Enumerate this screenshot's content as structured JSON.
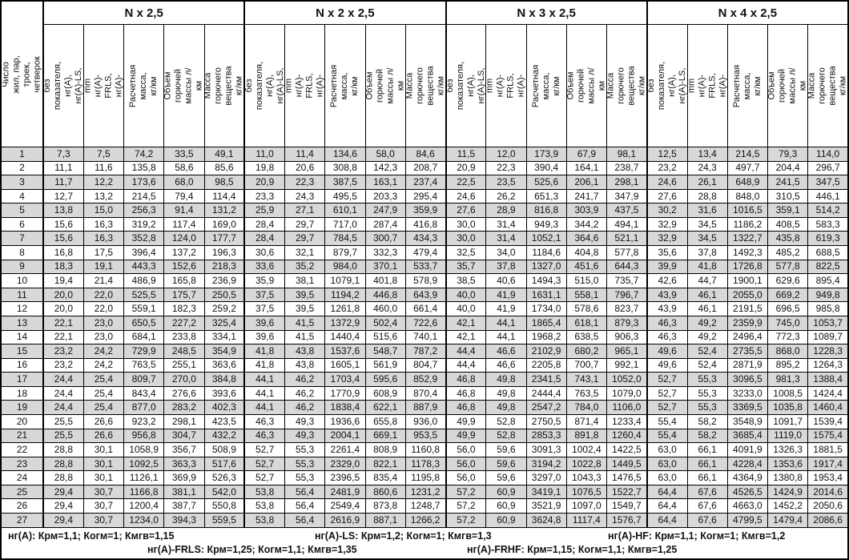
{
  "colors": {
    "stripe": "#d8d8d8",
    "border": "#000000",
    "background": "#ffffff",
    "text": "#111111"
  },
  "header": {
    "row_label": "Число жил, пар, троек,\nчетверок",
    "groups": [
      "N x 2,5",
      "N x 2 x 2,5",
      "N x 3 x 2,5",
      "N x 4 x 2,5"
    ],
    "columns": [
      "Dmax, mm\nбез показателя, нг(А),\nнг(А)-LS, нг(А)-HF",
      "Dmax, mm\nнг(А)-FRLS,\nнг(А)-FRHF",
      "Расчетная масса,\nкг/км",
      "Объем горючей\nмассы л/км",
      "Масса горючего\nвещества кг/км"
    ]
  },
  "rows": [
    [
      "1",
      "7,3",
      "7,5",
      "74,2",
      "33,5",
      "49,1",
      "11,0",
      "11,4",
      "134,6",
      "58,0",
      "84,6",
      "11,5",
      "12,0",
      "173,9",
      "67,9",
      "98,1",
      "12,5",
      "13,4",
      "214,5",
      "79,3",
      "114,0"
    ],
    [
      "2",
      "11,1",
      "11,6",
      "135,8",
      "58,6",
      "85,6",
      "19,8",
      "20,6",
      "308,8",
      "142,3",
      "208,7",
      "20,9",
      "22,3",
      "390,4",
      "164,1",
      "238,7",
      "23,2",
      "24,3",
      "497,7",
      "204,4",
      "296,7"
    ],
    [
      "3",
      "11,7",
      "12,2",
      "173,6",
      "68,0",
      "98,5",
      "20,9",
      "22,3",
      "387,5",
      "163,1",
      "237,4",
      "22,5",
      "23,5",
      "525,6",
      "206,1",
      "298,1",
      "24,6",
      "26,1",
      "648,9",
      "241,5",
      "347,5"
    ],
    [
      "4",
      "12,7",
      "13,2",
      "214,5",
      "79,4",
      "114,4",
      "23,3",
      "24,3",
      "495,5",
      "203,3",
      "295,4",
      "24,6",
      "26,2",
      "651,3",
      "241,7",
      "347,9",
      "27,6",
      "28,8",
      "848,0",
      "310,5",
      "446,1"
    ],
    [
      "5",
      "13,8",
      "15,0",
      "256,3",
      "91,4",
      "131,2",
      "25,9",
      "27,1",
      "610,1",
      "247,9",
      "359,9",
      "27,6",
      "28,9",
      "816,8",
      "303,9",
      "437,5",
      "30,2",
      "31,6",
      "1016,5",
      "359,1",
      "514,2"
    ],
    [
      "6",
      "15,6",
      "16,3",
      "319,2",
      "117,4",
      "169,0",
      "28,4",
      "29,7",
      "717,0",
      "287,4",
      "416,8",
      "30,0",
      "31,4",
      "949,3",
      "344,2",
      "494,1",
      "32,9",
      "34,5",
      "1186,2",
      "408,5",
      "583,3"
    ],
    [
      "7",
      "15,6",
      "16,3",
      "352,8",
      "124,0",
      "177,7",
      "28,4",
      "29,7",
      "784,5",
      "300,7",
      "434,3",
      "30,0",
      "31,4",
      "1052,1",
      "364,6",
      "521,1",
      "32,9",
      "34,5",
      "1322,7",
      "435,8",
      "619,3"
    ],
    [
      "8",
      "16,8",
      "17,5",
      "396,4",
      "137,2",
      "196,3",
      "30,6",
      "32,1",
      "879,7",
      "332,3",
      "479,4",
      "32,5",
      "34,0",
      "1184,6",
      "404,8",
      "577,8",
      "35,6",
      "37,8",
      "1492,3",
      "485,2",
      "688,5"
    ],
    [
      "9",
      "18,3",
      "19,1",
      "443,3",
      "152,6",
      "218,3",
      "33,6",
      "35,2",
      "984,0",
      "370,1",
      "533,7",
      "35,7",
      "37,8",
      "1327,0",
      "451,6",
      "644,3",
      "39,9",
      "41,8",
      "1726,8",
      "577,8",
      "822,5"
    ],
    [
      "10",
      "19,4",
      "21,4",
      "486,9",
      "165,8",
      "236,9",
      "35,9",
      "38,1",
      "1079,1",
      "401,8",
      "578,9",
      "38,5",
      "40,6",
      "1494,3",
      "515,0",
      "735,7",
      "42,6",
      "44,7",
      "1900,1",
      "629,6",
      "895,4"
    ],
    [
      "11",
      "20,0",
      "22,0",
      "525,5",
      "175,7",
      "250,5",
      "37,5",
      "39,5",
      "1194,2",
      "446,8",
      "643,9",
      "40,0",
      "41,9",
      "1631,1",
      "558,1",
      "796,7",
      "43,9",
      "46,1",
      "2055,0",
      "669,2",
      "949,8"
    ],
    [
      "12",
      "20,0",
      "22,0",
      "559,1",
      "182,3",
      "259,2",
      "37,5",
      "39,5",
      "1261,8",
      "460,0",
      "661,4",
      "40,0",
      "41,9",
      "1734,0",
      "578,6",
      "823,7",
      "43,9",
      "46,1",
      "2191,5",
      "696,5",
      "985,8"
    ],
    [
      "13",
      "22,1",
      "23,0",
      "650,5",
      "227,2",
      "325,4",
      "39,6",
      "41,5",
      "1372,9",
      "502,4",
      "722,6",
      "42,1",
      "44,1",
      "1865,4",
      "618,1",
      "879,3",
      "46,3",
      "49,2",
      "2359,9",
      "745,0",
      "1053,7"
    ],
    [
      "14",
      "22,1",
      "23,0",
      "684,1",
      "233,8",
      "334,1",
      "39,6",
      "41,5",
      "1440,4",
      "515,6",
      "740,1",
      "42,1",
      "44,1",
      "1968,2",
      "638,5",
      "906,3",
      "46,3",
      "49,2",
      "2496,4",
      "772,3",
      "1089,7"
    ],
    [
      "15",
      "23,2",
      "24,2",
      "729,9",
      "248,5",
      "354,9",
      "41,8",
      "43,8",
      "1537,6",
      "548,7",
      "787,2",
      "44,4",
      "46,6",
      "2102,9",
      "680,2",
      "965,1",
      "49,6",
      "52,4",
      "2735,5",
      "868,0",
      "1228,3"
    ],
    [
      "16",
      "23,2",
      "24,2",
      "763,5",
      "255,1",
      "363,6",
      "41,8",
      "43,8",
      "1605,1",
      "561,9",
      "804,7",
      "44,4",
      "46,6",
      "2205,8",
      "700,7",
      "992,1",
      "49,6",
      "52,4",
      "2871,9",
      "895,2",
      "1264,3"
    ],
    [
      "17",
      "24,4",
      "25,4",
      "809,7",
      "270,0",
      "384,8",
      "44,1",
      "46,2",
      "1703,4",
      "595,6",
      "852,9",
      "46,8",
      "49,8",
      "2341,5",
      "743,1",
      "1052,0",
      "52,7",
      "55,3",
      "3096,5",
      "981,3",
      "1388,4"
    ],
    [
      "18",
      "24,4",
      "25,4",
      "843,4",
      "276,6",
      "393,6",
      "44,1",
      "46,2",
      "1770,9",
      "608,9",
      "870,4",
      "46,8",
      "49,8",
      "2444,4",
      "763,5",
      "1079,0",
      "52,7",
      "55,3",
      "3233,0",
      "1008,5",
      "1424,4"
    ],
    [
      "19",
      "24,4",
      "25,4",
      "877,0",
      "283,2",
      "402,3",
      "44,1",
      "46,2",
      "1838,4",
      "622,1",
      "887,9",
      "46,8",
      "49,8",
      "2547,2",
      "784,0",
      "1106,0",
      "52,7",
      "55,3",
      "3369,5",
      "1035,8",
      "1460,4"
    ],
    [
      "20",
      "25,5",
      "26,6",
      "923,2",
      "298,1",
      "423,5",
      "46,3",
      "49,3",
      "1936,6",
      "655,8",
      "936,0",
      "49,9",
      "52,8",
      "2750,5",
      "871,4",
      "1233,4",
      "55,4",
      "58,2",
      "3548,9",
      "1091,7",
      "1539,4"
    ],
    [
      "21",
      "25,5",
      "26,6",
      "956,8",
      "304,7",
      "432,2",
      "46,3",
      "49,3",
      "2004,1",
      "669,1",
      "953,5",
      "49,9",
      "52,8",
      "2853,3",
      "891,8",
      "1260,4",
      "55,4",
      "58,2",
      "3685,4",
      "1119,0",
      "1575,4"
    ],
    [
      "22",
      "28,8",
      "30,1",
      "1058,9",
      "356,7",
      "508,9",
      "52,7",
      "55,3",
      "2261,4",
      "808,9",
      "1160,8",
      "56,0",
      "59,6",
      "3091,3",
      "1002,4",
      "1422,5",
      "63,0",
      "66,1",
      "4091,9",
      "1326,3",
      "1881,5"
    ],
    [
      "23",
      "28,8",
      "30,1",
      "1092,5",
      "363,3",
      "517,6",
      "52,7",
      "55,3",
      "2329,0",
      "822,1",
      "1178,3",
      "56,0",
      "59,6",
      "3194,2",
      "1022,8",
      "1449,5",
      "63,0",
      "66,1",
      "4228,4",
      "1353,6",
      "1917,4"
    ],
    [
      "24",
      "28,8",
      "30,1",
      "1126,1",
      "369,9",
      "526,3",
      "52,7",
      "55,3",
      "2396,5",
      "835,4",
      "1195,8",
      "56,0",
      "59,6",
      "3297,0",
      "1043,3",
      "1476,5",
      "63,0",
      "66,1",
      "4364,9",
      "1380,8",
      "1953,4"
    ],
    [
      "25",
      "29,4",
      "30,7",
      "1166,8",
      "381,1",
      "542,0",
      "53,8",
      "56,4",
      "2481,9",
      "860,6",
      "1231,2",
      "57,2",
      "60,9",
      "3419,1",
      "1076,5",
      "1522,7",
      "64,4",
      "67,6",
      "4526,5",
      "1424,9",
      "2014,6"
    ],
    [
      "26",
      "29,4",
      "30,7",
      "1200,4",
      "387,7",
      "550,8",
      "53,8",
      "56,4",
      "2549,4",
      "873,8",
      "1248,7",
      "57,2",
      "60,9",
      "3521,9",
      "1097,0",
      "1549,7",
      "64,4",
      "67,6",
      "4663,0",
      "1452,2",
      "2050,6"
    ],
    [
      "27",
      "29,4",
      "30,7",
      "1234,0",
      "394,3",
      "559,5",
      "53,8",
      "56,4",
      "2616,9",
      "887,1",
      "1266,2",
      "57,2",
      "60,9",
      "3624,8",
      "1117,4",
      "1576,7",
      "64,4",
      "67,6",
      "4799,5",
      "1479,4",
      "2086,6"
    ]
  ],
  "footer": {
    "line1_left": "нг(А): Крм=1,1;  Когм=1;  Кмгв=1,15",
    "line1_mid": "нг(А)-LS: Крм=1,2;  Когм=1;  Кмгв=1,3",
    "line1_right": "нг(А)-HF: Крм=1,1;  Когм=1;  Кмгв=1,2",
    "line2_left": "нг(А)-FRLS: Крм=1,25;  Когм=1,1;  Кмгв=1,35",
    "line2_right": "нг(А)-FRHF: Крм=1,15;  Когм=1,1;  Кмгв=1,25"
  }
}
